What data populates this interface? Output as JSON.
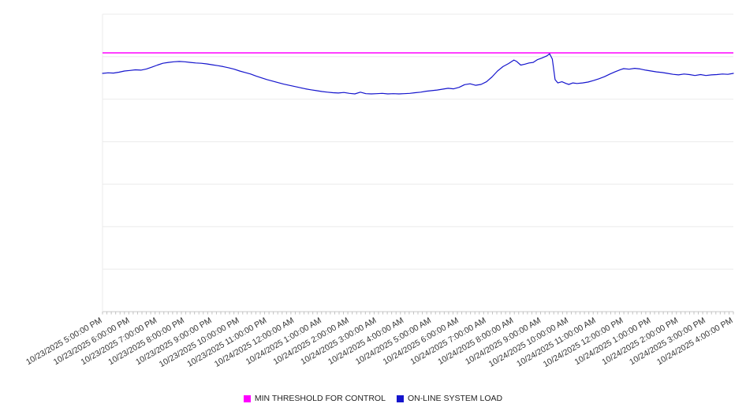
{
  "colors": {
    "background": "#ffffff",
    "grid": "#ebebeb",
    "axis": "#c8c8c8",
    "tick": "#c0c0c0",
    "tick_label": "#333333",
    "threshold": "#ff00ff",
    "load": "#1515cd"
  },
  "legend": {
    "items": [
      {
        "label": "MIN THRESHOLD FOR CONTROL",
        "color": "#ff00ff"
      },
      {
        "label": "ON-LINE SYSTEM LOAD",
        "color": "#1515cd"
      }
    ]
  },
  "chart_data": {
    "type": "line",
    "title": "",
    "xlabel": "",
    "ylabel": "",
    "ylim": [
      0,
      100
    ],
    "grid": true,
    "legend_position": "bottom-center",
    "x_tick_rotation": -30,
    "y_axis_labels_visible": false,
    "categories": [
      "10/23/2025 5:00:00 PM",
      "10/23/2025 6:00:00 PM",
      "10/23/2025 7:00:00 PM",
      "10/23/2025 8:00:00 PM",
      "10/23/2025 9:00:00 PM",
      "10/23/2025 10:00:00 PM",
      "10/23/2025 11:00:00 PM",
      "10/24/2025 12:00:00 AM",
      "10/24/2025 1:00:00 AM",
      "10/24/2025 2:00:00 AM",
      "10/24/2025 3:00:00 AM",
      "10/24/2025 4:00:00 AM",
      "10/24/2025 5:00:00 AM",
      "10/24/2025 6:00:00 AM",
      "10/24/2025 7:00:00 AM",
      "10/24/2025 8:00:00 AM",
      "10/24/2025 9:00:00 AM",
      "10/24/2025 10:00:00 AM",
      "10/24/2025 11:00:00 AM",
      "10/24/2025 12:00:00 PM",
      "10/24/2025 1:00:00 PM",
      "10/24/2025 2:00:00 PM",
      "10/24/2025 3:00:00 PM",
      "10/24/2025 4:00:00 PM"
    ],
    "series": [
      {
        "name": "MIN THRESHOLD FOR CONTROL",
        "type": "threshold-line",
        "color": "#ff00ff",
        "value": 87
      },
      {
        "name": "ON-LINE SYSTEM LOAD",
        "type": "line",
        "color": "#1515cd",
        "x_unit": "hours from 10/23/2025 5:00:00 PM",
        "points": [
          [
            0,
            80.1
          ],
          [
            0.2,
            80.3
          ],
          [
            0.4,
            80.2
          ],
          [
            0.6,
            80.5
          ],
          [
            0.8,
            80.9
          ],
          [
            1.0,
            81.1
          ],
          [
            1.2,
            81.3
          ],
          [
            1.4,
            81.2
          ],
          [
            1.6,
            81.6
          ],
          [
            1.8,
            82.2
          ],
          [
            2.0,
            82.9
          ],
          [
            2.2,
            83.5
          ],
          [
            2.4,
            83.8
          ],
          [
            2.6,
            84.0
          ],
          [
            2.8,
            84.1
          ],
          [
            3.0,
            84.0
          ],
          [
            3.2,
            83.8
          ],
          [
            3.4,
            83.6
          ],
          [
            3.6,
            83.5
          ],
          [
            3.8,
            83.3
          ],
          [
            4.0,
            83.0
          ],
          [
            4.2,
            82.7
          ],
          [
            4.4,
            82.4
          ],
          [
            4.6,
            82.0
          ],
          [
            4.8,
            81.5
          ],
          [
            5.0,
            80.9
          ],
          [
            5.2,
            80.4
          ],
          [
            5.4,
            79.9
          ],
          [
            5.6,
            79.2
          ],
          [
            5.8,
            78.6
          ],
          [
            6.0,
            78.0
          ],
          [
            6.2,
            77.5
          ],
          [
            6.4,
            77.0
          ],
          [
            6.6,
            76.5
          ],
          [
            6.8,
            76.1
          ],
          [
            7.0,
            75.7
          ],
          [
            7.2,
            75.3
          ],
          [
            7.4,
            74.9
          ],
          [
            7.6,
            74.6
          ],
          [
            7.8,
            74.3
          ],
          [
            8.0,
            74.0
          ],
          [
            8.2,
            73.8
          ],
          [
            8.4,
            73.6
          ],
          [
            8.6,
            73.5
          ],
          [
            8.8,
            73.7
          ],
          [
            9.0,
            73.4
          ],
          [
            9.2,
            73.2
          ],
          [
            9.4,
            73.8
          ],
          [
            9.6,
            73.3
          ],
          [
            9.8,
            73.2
          ],
          [
            10.0,
            73.3
          ],
          [
            10.2,
            73.4
          ],
          [
            10.4,
            73.2
          ],
          [
            10.6,
            73.3
          ],
          [
            10.8,
            73.2
          ],
          [
            11.0,
            73.3
          ],
          [
            11.2,
            73.4
          ],
          [
            11.4,
            73.6
          ],
          [
            11.6,
            73.8
          ],
          [
            11.8,
            74.1
          ],
          [
            12.0,
            74.3
          ],
          [
            12.2,
            74.5
          ],
          [
            12.4,
            74.8
          ],
          [
            12.6,
            75.1
          ],
          [
            12.8,
            74.9
          ],
          [
            13.0,
            75.4
          ],
          [
            13.2,
            76.3
          ],
          [
            13.4,
            76.6
          ],
          [
            13.6,
            76.1
          ],
          [
            13.8,
            76.4
          ],
          [
            14.0,
            77.3
          ],
          [
            14.2,
            78.9
          ],
          [
            14.4,
            80.9
          ],
          [
            14.6,
            82.4
          ],
          [
            14.8,
            83.4
          ],
          [
            15.0,
            84.6
          ],
          [
            15.1,
            84.1
          ],
          [
            15.25,
            82.9
          ],
          [
            15.4,
            83.2
          ],
          [
            15.55,
            83.6
          ],
          [
            15.7,
            83.8
          ],
          [
            15.85,
            84.7
          ],
          [
            16.0,
            85.2
          ],
          [
            16.1,
            85.6
          ],
          [
            16.2,
            86.0
          ],
          [
            16.3,
            86.7
          ],
          [
            16.4,
            84.9
          ],
          [
            16.5,
            78.0
          ],
          [
            16.6,
            76.9
          ],
          [
            16.75,
            77.3
          ],
          [
            16.9,
            76.7
          ],
          [
            17.0,
            76.4
          ],
          [
            17.15,
            76.9
          ],
          [
            17.3,
            76.7
          ],
          [
            17.5,
            76.9
          ],
          [
            17.7,
            77.2
          ],
          [
            17.9,
            77.7
          ],
          [
            18.1,
            78.3
          ],
          [
            18.3,
            79.0
          ],
          [
            18.5,
            79.9
          ],
          [
            18.7,
            80.7
          ],
          [
            18.9,
            81.4
          ],
          [
            19.0,
            81.7
          ],
          [
            19.2,
            81.5
          ],
          [
            19.4,
            81.8
          ],
          [
            19.6,
            81.6
          ],
          [
            19.8,
            81.2
          ],
          [
            20.0,
            80.9
          ],
          [
            20.2,
            80.6
          ],
          [
            20.4,
            80.4
          ],
          [
            20.6,
            80.1
          ],
          [
            20.8,
            79.8
          ],
          [
            21.0,
            79.6
          ],
          [
            21.2,
            79.9
          ],
          [
            21.4,
            79.7
          ],
          [
            21.6,
            79.4
          ],
          [
            21.8,
            79.7
          ],
          [
            22.0,
            79.4
          ],
          [
            22.2,
            79.6
          ],
          [
            22.4,
            79.7
          ],
          [
            22.6,
            79.9
          ],
          [
            22.8,
            79.8
          ],
          [
            23.0,
            80.1
          ]
        ]
      }
    ]
  }
}
